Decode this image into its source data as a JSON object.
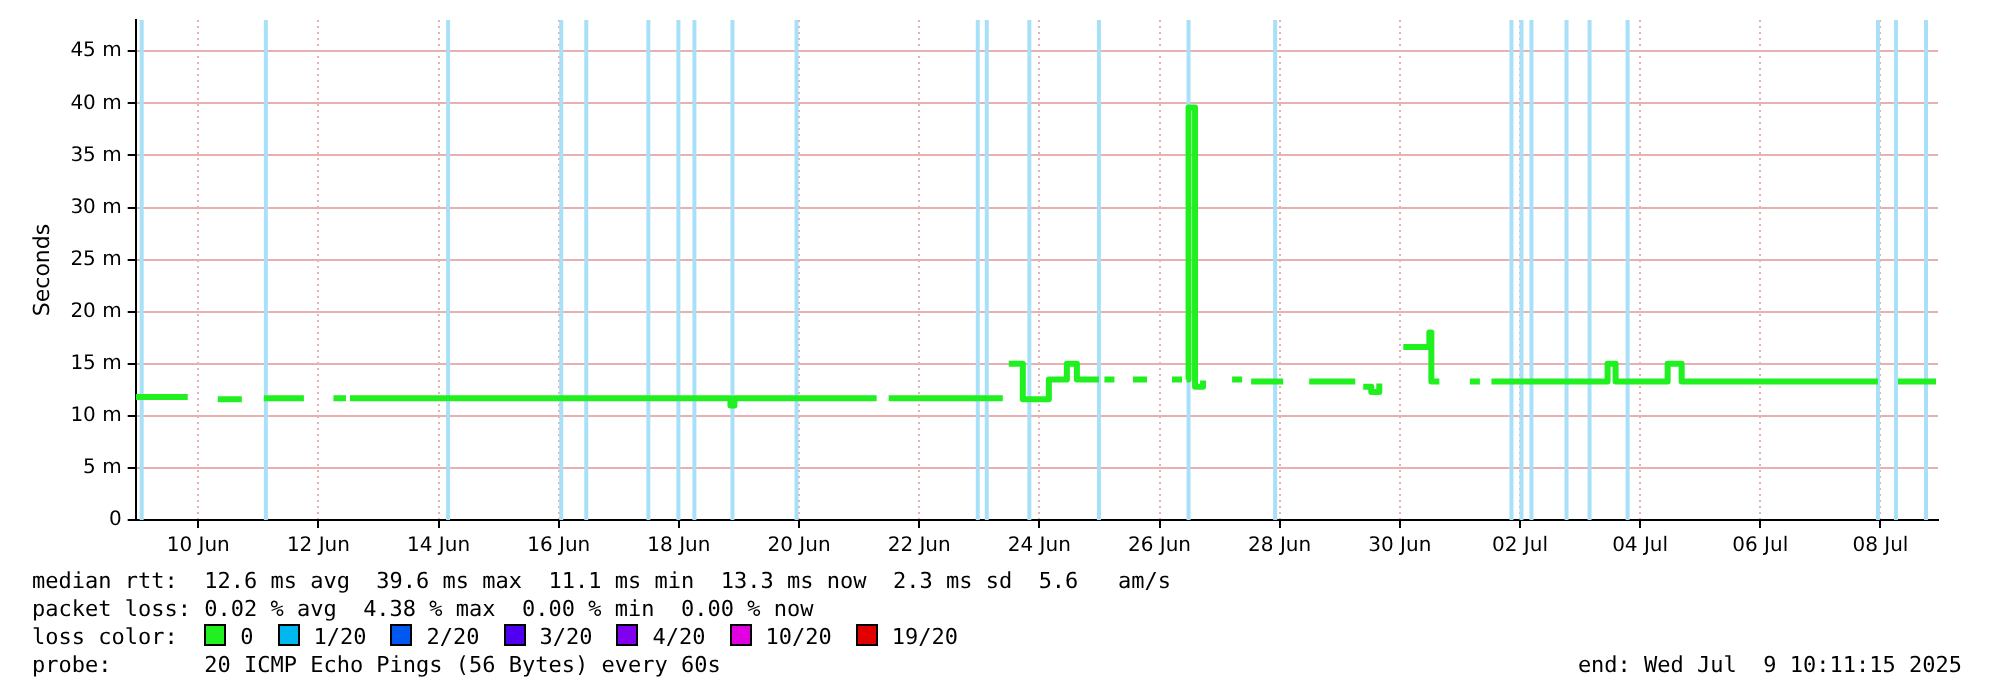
{
  "chart_data": {
    "type": "step",
    "ylabel": "Seconds",
    "legend_title": "loss color:",
    "legend": "bottom",
    "grid": true,
    "xlim": [
      "2025-06-08T23:00",
      "2025-07-08T23:00"
    ],
    "xticks": [
      {
        "value": "2025-06-10",
        "label": "10 Jun"
      },
      {
        "value": "2025-06-12",
        "label": "12 Jun"
      },
      {
        "value": "2025-06-14",
        "label": "14 Jun"
      },
      {
        "value": "2025-06-16",
        "label": "16 Jun"
      },
      {
        "value": "2025-06-18",
        "label": "18 Jun"
      },
      {
        "value": "2025-06-20",
        "label": "20 Jun"
      },
      {
        "value": "2025-06-22",
        "label": "22 Jun"
      },
      {
        "value": "2025-06-24",
        "label": "24 Jun"
      },
      {
        "value": "2025-06-26",
        "label": "26 Jun"
      },
      {
        "value": "2025-06-28",
        "label": "28 Jun"
      },
      {
        "value": "2025-06-30",
        "label": "30 Jun"
      },
      {
        "value": "2025-07-02",
        "label": "02 Jul"
      },
      {
        "value": "2025-07-04",
        "label": "04 Jul"
      },
      {
        "value": "2025-07-06",
        "label": "06 Jul"
      },
      {
        "value": "2025-07-08",
        "label": "08 Jul"
      }
    ],
    "ylim": [
      0,
      48
    ],
    "yticks": [
      {
        "value": 0,
        "label": "0"
      },
      {
        "value": 5,
        "label": "5 m"
      },
      {
        "value": 10,
        "label": "10 m"
      },
      {
        "value": 15,
        "label": "15 m"
      },
      {
        "value": 20,
        "label": "20 m"
      },
      {
        "value": 25,
        "label": "25 m"
      },
      {
        "value": 30,
        "label": "30 m"
      },
      {
        "value": 35,
        "label": "35 m"
      },
      {
        "value": 40,
        "label": "40 m"
      },
      {
        "value": 45,
        "label": "45 m"
      }
    ],
    "series": [
      {
        "name": "0",
        "color": "#20f020",
        "x": [
          "2025-06-08T23:00",
          "2025-06-09T19:48",
          "2025-06-09T20:00",
          "2025-06-10T07:48",
          "2025-06-10T17:24",
          "2025-06-10T18:00",
          "2025-06-11T02:12",
          "2025-06-11T18:12",
          "2025-06-11T19:00",
          "2025-06-12T06:00",
          "2025-06-12T11:00",
          "2025-06-12T11:30",
          "2025-06-12T12:36",
          "2025-06-18T20:00",
          "2025-06-18T20:36",
          "2025-06-18T22:12",
          "2025-06-21T07:00",
          "2025-06-21T08:00",
          "2025-06-21T11:48",
          "2025-06-23T09:24",
          "2025-06-23T10:00",
          "2025-06-23T11:48",
          "2025-06-23T17:24",
          "2025-06-24T03:48",
          "2025-06-24T11:00",
          "2025-06-24T15:00",
          "2025-06-24T23:48",
          "2025-06-25T00:30",
          "2025-06-25T02:00",
          "2025-06-25T06:00",
          "2025-06-25T06:30",
          "2025-06-25T13:24",
          "2025-06-25T19:00",
          "2025-06-25T20:00",
          "2025-06-26T05:00",
          "2025-06-26T09:00",
          "2025-06-26T09:30",
          "2025-06-26T10:48",
          "2025-06-26T11:36",
          "2025-06-26T14:12",
          "2025-06-26T17:24",
          "2025-06-26T18:00",
          "2025-06-27T05:00",
          "2025-06-27T09:00",
          "2025-06-27T09:30",
          "2025-06-27T12:36",
          "2025-06-28T01:24",
          "2025-06-28T02:00",
          "2025-06-28T11:48",
          "2025-06-29T06:12",
          "2025-06-29T07:00",
          "2025-06-29T09:24",
          "2025-06-29T12:36",
          "2025-06-29T15:48",
          "2025-06-29T16:30",
          "2025-06-30T01:24",
          "2025-06-30T11:48",
          "2025-06-30T12:36",
          "2025-06-30T15:48",
          "2025-06-30T16:30",
          "2025-07-01T04:00",
          "2025-07-01T08:00",
          "2025-07-01T08:30",
          "2025-07-01T12:36",
          "2025-07-03T11:00",
          "2025-07-03T14:12",
          "2025-07-04T11:00",
          "2025-07-04T16:36",
          "2025-07-07T23:00",
          "2025-07-07T23:30",
          "2025-07-08T07:00",
          "2025-07-08T22:12"
        ],
        "values": [
          11.8,
          11.8,
          null,
          11.6,
          11.6,
          null,
          11.7,
          11.7,
          null,
          11.7,
          11.7,
          null,
          11.7,
          11.7,
          11,
          11.7,
          11.7,
          null,
          11.7,
          11.7,
          null,
          15,
          11.6,
          13.5,
          15,
          13.5,
          13.5,
          null,
          13.5,
          13.5,
          null,
          13.5,
          13.5,
          null,
          13.5,
          13.5,
          null,
          13.5,
          39.6,
          12.8,
          13.4,
          null,
          13.5,
          13.5,
          null,
          13.3,
          13.3,
          null,
          13.3,
          13.3,
          null,
          12.8,
          12.3,
          13.1,
          null,
          16.6,
          18,
          13.3,
          13.3,
          null,
          13.3,
          13.3,
          null,
          13.3,
          15,
          13.3,
          15,
          13.3,
          13.3,
          null,
          13.3,
          13.3
        ]
      },
      {
        "name": "1/20",
        "color": "#00b8f0"
      },
      {
        "name": "2/20",
        "color": "#0058f0"
      },
      {
        "name": "3/20",
        "color": "#5000f0"
      },
      {
        "name": "4/20",
        "color": "#8000f0"
      },
      {
        "name": "10/20",
        "color": "#e000e0"
      },
      {
        "name": "19/20",
        "color": "#e00000"
      }
    ],
    "ref_lines": [
      {
        "axis": "x",
        "value": "2025-06-09T01:24",
        "color": "#a8e0f8"
      },
      {
        "axis": "x",
        "value": "2025-06-11T03:00",
        "color": "#a8e0f8"
      },
      {
        "axis": "x",
        "value": "2025-06-14T03:48",
        "color": "#a8e0f8"
      },
      {
        "axis": "x",
        "value": "2025-06-16T01:00",
        "color": "#a8e0f8"
      },
      {
        "axis": "x",
        "value": "2025-06-16T11:00",
        "color": "#a8e0f8"
      },
      {
        "axis": "x",
        "value": "2025-06-17T11:48",
        "color": "#a8e0f8"
      },
      {
        "axis": "x",
        "value": "2025-06-17T23:48",
        "color": "#a8e0f8"
      },
      {
        "axis": "x",
        "value": "2025-06-18T06:12",
        "color": "#a8e0f8"
      },
      {
        "axis": "x",
        "value": "2025-06-18T21:24",
        "color": "#a8e0f8"
      },
      {
        "axis": "x",
        "value": "2025-06-19T23:00",
        "color": "#a8e0f8"
      },
      {
        "axis": "x",
        "value": "2025-06-22T23:24",
        "color": "#a8e0f8"
      },
      {
        "axis": "x",
        "value": "2025-06-23T03:00",
        "color": "#a8e0f8"
      },
      {
        "axis": "x",
        "value": "2025-06-23T20:00",
        "color": "#a8e0f8"
      },
      {
        "axis": "x",
        "value": "2025-06-24T23:48",
        "color": "#a8e0f8"
      },
      {
        "axis": "x",
        "value": "2025-06-26T11:36",
        "color": "#a8e0f8"
      },
      {
        "axis": "x",
        "value": "2025-06-27T22:12",
        "color": "#a8e0f8"
      },
      {
        "axis": "x",
        "value": "2025-07-01T20:36",
        "color": "#a8e0f8"
      },
      {
        "axis": "x",
        "value": "2025-07-02T00:36",
        "color": "#a8e0f8"
      },
      {
        "axis": "x",
        "value": "2025-07-02T04:36",
        "color": "#a8e0f8"
      },
      {
        "axis": "x",
        "value": "2025-07-02T18:36",
        "color": "#a8e0f8"
      },
      {
        "axis": "x",
        "value": "2025-07-03T03:48",
        "color": "#a8e0f8"
      },
      {
        "axis": "x",
        "value": "2025-07-03T19:00",
        "color": "#a8e0f8"
      },
      {
        "axis": "x",
        "value": "2025-07-07T23:00",
        "color": "#a8e0f8"
      },
      {
        "axis": "x",
        "value": "2025-07-08T06:12",
        "color": "#a8e0f8"
      },
      {
        "axis": "x",
        "value": "2025-07-08T18:12",
        "color": "#a8e0f8"
      }
    ],
    "annotations": [
      "median rtt:  12.6 ms avg  39.6 ms max  11.1 ms min  13.3 ms now  2.3 ms sd  5.6   am/s",
      "packet loss: 0.02 % avg  4.38 % max  0.00 % min  0.00 % now",
      "probe:       20 ICMP Echo Pings (56 Bytes) every 60s",
      "end: Wed Jul  9 10:11:15 2025"
    ]
  }
}
